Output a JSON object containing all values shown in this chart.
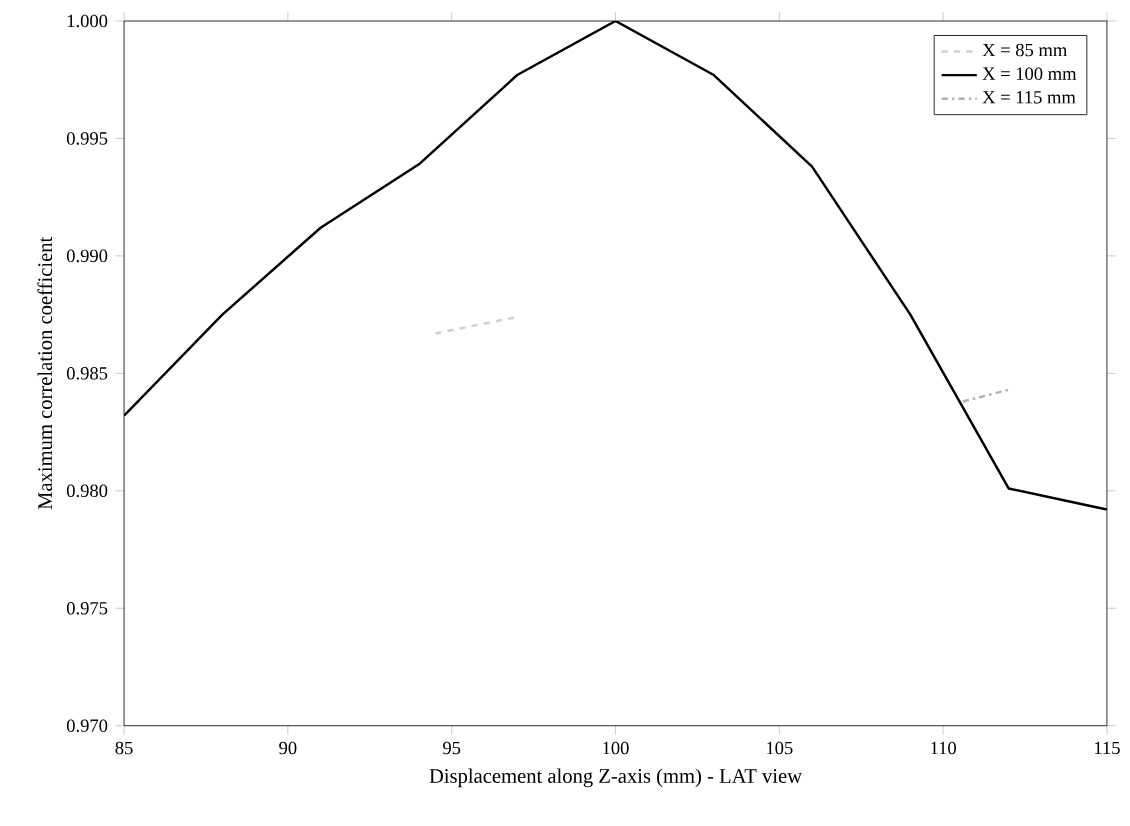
{
  "chart_data": {
    "type": "line",
    "xlabel": "Displacement along Z-axis (mm) - LAT view",
    "ylabel": "Maximum correlation coefficient",
    "x": [
      85,
      88,
      91,
      94,
      97,
      100,
      103,
      106,
      109,
      112,
      115
    ],
    "series": [
      {
        "name": "X = 85 mm",
        "color": "#d0d0d0",
        "line_style": "dashed",
        "x": [
          94.5,
          97
        ],
        "values": [
          0.9867,
          0.9874
        ]
      },
      {
        "name": "X = 100 mm",
        "color": "#000000",
        "line_style": "solid",
        "values": [
          0.9832,
          0.9875,
          0.9912,
          0.9939,
          0.9977,
          1.0,
          0.9977,
          0.9938,
          0.9875,
          0.9801,
          0.9792
        ]
      },
      {
        "name": "X = 115 mm",
        "color": "#b0b0b0",
        "line_style": "dashdotted",
        "x": [
          110.6,
          112
        ],
        "values": [
          0.9838,
          0.9843
        ]
      }
    ],
    "xlim": [
      85,
      115
    ],
    "ylim": [
      0.97,
      1.0
    ],
    "xticks": [
      85,
      90,
      95,
      100,
      105,
      110,
      115
    ],
    "yticks": [
      {
        "value": 0.97,
        "label": "0.970"
      },
      {
        "value": 0.975,
        "label": "0.975"
      },
      {
        "value": 0.98,
        "label": "0.980"
      },
      {
        "value": 0.985,
        "label": "0.985"
      },
      {
        "value": 0.99,
        "label": "0.990"
      },
      {
        "value": 0.995,
        "label": "0.995"
      },
      {
        "value": 1.0,
        "label": "1.000"
      }
    ],
    "legend": "top right",
    "grid": false,
    "marker": "none"
  }
}
